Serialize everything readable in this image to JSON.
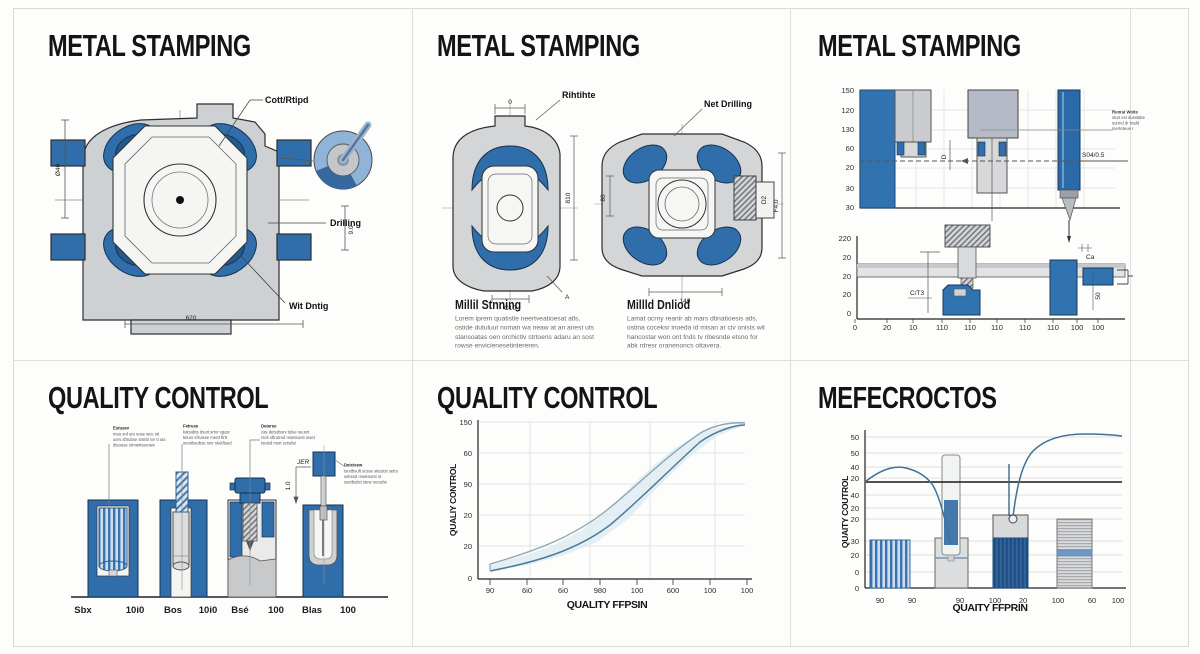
{
  "p1": {
    "title": "METAL STAMPING",
    "callout_top": "Cott/Rtipd",
    "callout_right": "Drilling",
    "callout_bottom": "Wit Dntig",
    "dim_width": "620",
    "dim_left": "Ø40",
    "dim_right": "9.0"
  },
  "p2": {
    "title": "METAL STAMPING",
    "callout_left": "Rihtihte",
    "callout_right": "Net Drilling",
    "dim_top": "0",
    "dim_810": "810",
    "dim_c10": "C10",
    "dim_a": "A",
    "dim_80": "80",
    "dim_140": "140",
    "dim_d2": "D2",
    "dim_f40": "F4.0",
    "blocks": [
      {
        "heading": "Millil Stnning",
        "body": "Lorem iprem quatistle neertveatioesat atls, ostide dutuluut noman wa neaw at an anest uts stansoatas oen orchictlv strtoens adaru an sost rowse envicienesetintereren."
      },
      {
        "heading": "Millld Dnliod",
        "body": "Lamat ocrny reanir ab mars dtinatioesis atls, ostina coceksr inoeda id misan ar civ onists wit hancostar won ont fnds tv ribesnde etsno for abk rdresr oranenoncs ottavera."
      }
    ]
  },
  "p3": {
    "title": "METAL STAMPING",
    "chartA": {
      "yticks": [
        "150",
        "120",
        "130",
        "60",
        "20",
        "30",
        "30"
      ],
      "label_s04": "S04/0.5",
      "dim_d": "D",
      "note": [
        "Runral Wolte",
        "sturt ext dusslatte",
        "surmd dr tradd",
        "merteteue r"
      ]
    },
    "chartB": {
      "yticks": [
        "220",
        "20",
        "20",
        "20",
        "0"
      ],
      "xticks": [
        "0",
        "20",
        "10",
        "110",
        "110",
        "110",
        "110",
        "110",
        "100",
        "100"
      ],
      "dim_ct3": "C/T3",
      "dim_ca": "Ca",
      "dim_50": "50"
    }
  },
  "p4": {
    "title": "QUALITY CONTROL",
    "ann": [
      {
        "h": "Estusev",
        "b": "msa srd ars vuse wce stt uers sftrubse srtebr ter tt uts dtsoese strnwrtserows"
      },
      {
        "h": "Fetruse",
        "b": "katsubts dsurt srtvr sgusr telusr sfrutsse mertt ftrtt srestbsubse stvr skutftsed"
      },
      {
        "h": "Deterse",
        "b": "cas detsdssrv tulse seusrt rsck sftrutred msetsurst mset tsetsd msrt sctsdst"
      },
      {
        "h": "Detcleew",
        "b": "tsrstbsuft scsse stteutst setrs sebssd msetsurst st ssetbsdst stew sscsdst"
      }
    ],
    "labels": [
      "Sbx",
      "10i0",
      "Bos",
      "10i0",
      "Bsé",
      "100",
      "Blas",
      "100"
    ],
    "dim1": "JER",
    "dim2": "1.0"
  },
  "p5": {
    "title": "QUALITY CONTROL",
    "ylabel": "QUALIY CONTROL",
    "xlabel": "QUALITY FFPSIN",
    "yticks": [
      "150",
      "60",
      "90",
      "20",
      "20",
      "0"
    ],
    "xticks": [
      "90",
      "6i0",
      "6i0",
      "980",
      "100",
      "600",
      "100",
      "100"
    ]
  },
  "p6": {
    "title": "MEFECROCTOS",
    "ylabel": "QUAITY COUTROL",
    "xlabel": "QUAITY FFPRIN",
    "yticks": [
      "50",
      "50",
      "40",
      "20",
      "40",
      "20",
      "20",
      "30",
      "20",
      "0",
      "0"
    ],
    "xticks": [
      "90",
      "90",
      "90",
      "100",
      "20",
      "100",
      "60",
      "100"
    ]
  },
  "colors": {
    "steel_blue": "#2f6dab",
    "dark_blue": "#16334e",
    "metal_gray": "#ced1d4",
    "grid_gray": "#dcdfe2",
    "line_dark": "#2e2e2e"
  },
  "chart_data": [
    {
      "id": "metal-stamping-press-top",
      "type": "table",
      "title": "METAL STAMPING",
      "yticks": [
        "150",
        "120",
        "130",
        "60",
        "20",
        "30",
        "30"
      ],
      "xticks": [],
      "annotations": [
        "S04/0.5",
        "D",
        "Runral Wolte sturt ext dusslatte surmd dr tradd merteteue r"
      ],
      "grid": true
    },
    {
      "id": "metal-stamping-press-bottom",
      "type": "table",
      "yticks": [
        "220",
        "20",
        "20",
        "20",
        "0"
      ],
      "xticks": [
        "0",
        "20",
        "10",
        "110",
        "110",
        "110",
        "110",
        "110",
        "100",
        "100"
      ],
      "annotations": [
        "C/T3",
        "Ca",
        "50"
      ],
      "grid": false
    },
    {
      "id": "quality-control-sigmoid",
      "type": "area",
      "title": "QUALITY CONTROL",
      "xlabel": "QUALITY FFPSIN",
      "ylabel": "QUALIY CONTROL",
      "yticks": [
        "150",
        "60",
        "90",
        "20",
        "20",
        "0"
      ],
      "xticks": [
        "90",
        "6i0",
        "6i0",
        "980",
        "100",
        "600",
        "100",
        "100"
      ],
      "ylim": [
        0,
        160
      ],
      "series": [
        {
          "name": "upper-curve",
          "values": [
            15,
            22,
            33,
            52,
            82,
            112,
            133,
            145,
            150
          ]
        },
        {
          "name": "lower-curve",
          "values": [
            10,
            14,
            22,
            36,
            62,
            95,
            122,
            140,
            148
          ]
        }
      ],
      "legend_position": "none",
      "grid": true
    },
    {
      "id": "mefecroctos",
      "type": "bar",
      "title": "MEFECROCTOS",
      "xlabel": "QUAITY FFPRIN",
      "ylabel": "QUAITY COUTROL",
      "yticks": [
        "50",
        "50",
        "40",
        "20",
        "40",
        "20",
        "20",
        "30",
        "20",
        "0",
        "0"
      ],
      "xticks": [
        "90",
        "90",
        "90",
        "100",
        "20",
        "100",
        "60",
        "100"
      ],
      "ylim": [
        0,
        55
      ],
      "categories": [
        "bar-1",
        "bar-2",
        "bar-3",
        "bar-4"
      ],
      "values": [
        17,
        18,
        26,
        25
      ],
      "bar_styles": [
        "blue-vertical-stripes",
        "gray-with-test-tube",
        "blue-stripes-gray-cap",
        "gray-horizontal-stripes"
      ],
      "line_series": {
        "segment1_y": [
          39,
          42,
          43,
          38,
          28,
          16
        ],
        "segment2_y": [
          22,
          35,
          48,
          53,
          55,
          55
        ]
      },
      "ref_line_y": 38,
      "grid": true
    }
  ]
}
